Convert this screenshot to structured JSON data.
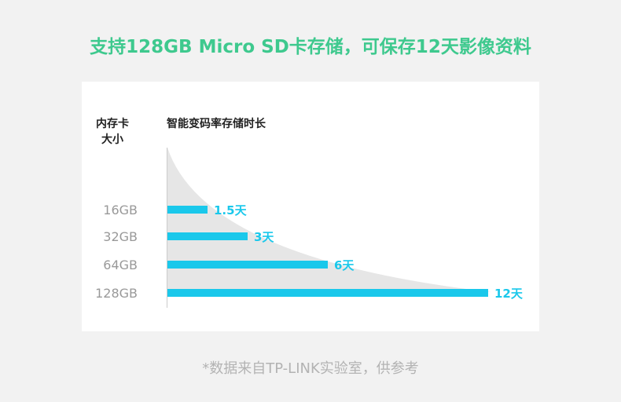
{
  "title": "支持128GB Micro SD卡存储，可保存12天影像资料",
  "footnote": "*数据来自TP-LINK实验室，供参考",
  "colors": {
    "title": "#3ec98e",
    "bar": "#1ac8eb",
    "curve": "#e6e6e6"
  },
  "chart_data": {
    "type": "bar",
    "orientation": "horizontal",
    "ylabel_line1": "内存卡",
    "ylabel_line2": "大小",
    "xlabel": "智能变码率存储时长",
    "categories": [
      "16GB",
      "32GB",
      "64GB",
      "128GB"
    ],
    "values": [
      1.5,
      3,
      6,
      12
    ],
    "value_labels": [
      "1.5天",
      "3天",
      "6天",
      "12天"
    ],
    "unit": "天",
    "xlim": [
      0,
      12
    ]
  }
}
